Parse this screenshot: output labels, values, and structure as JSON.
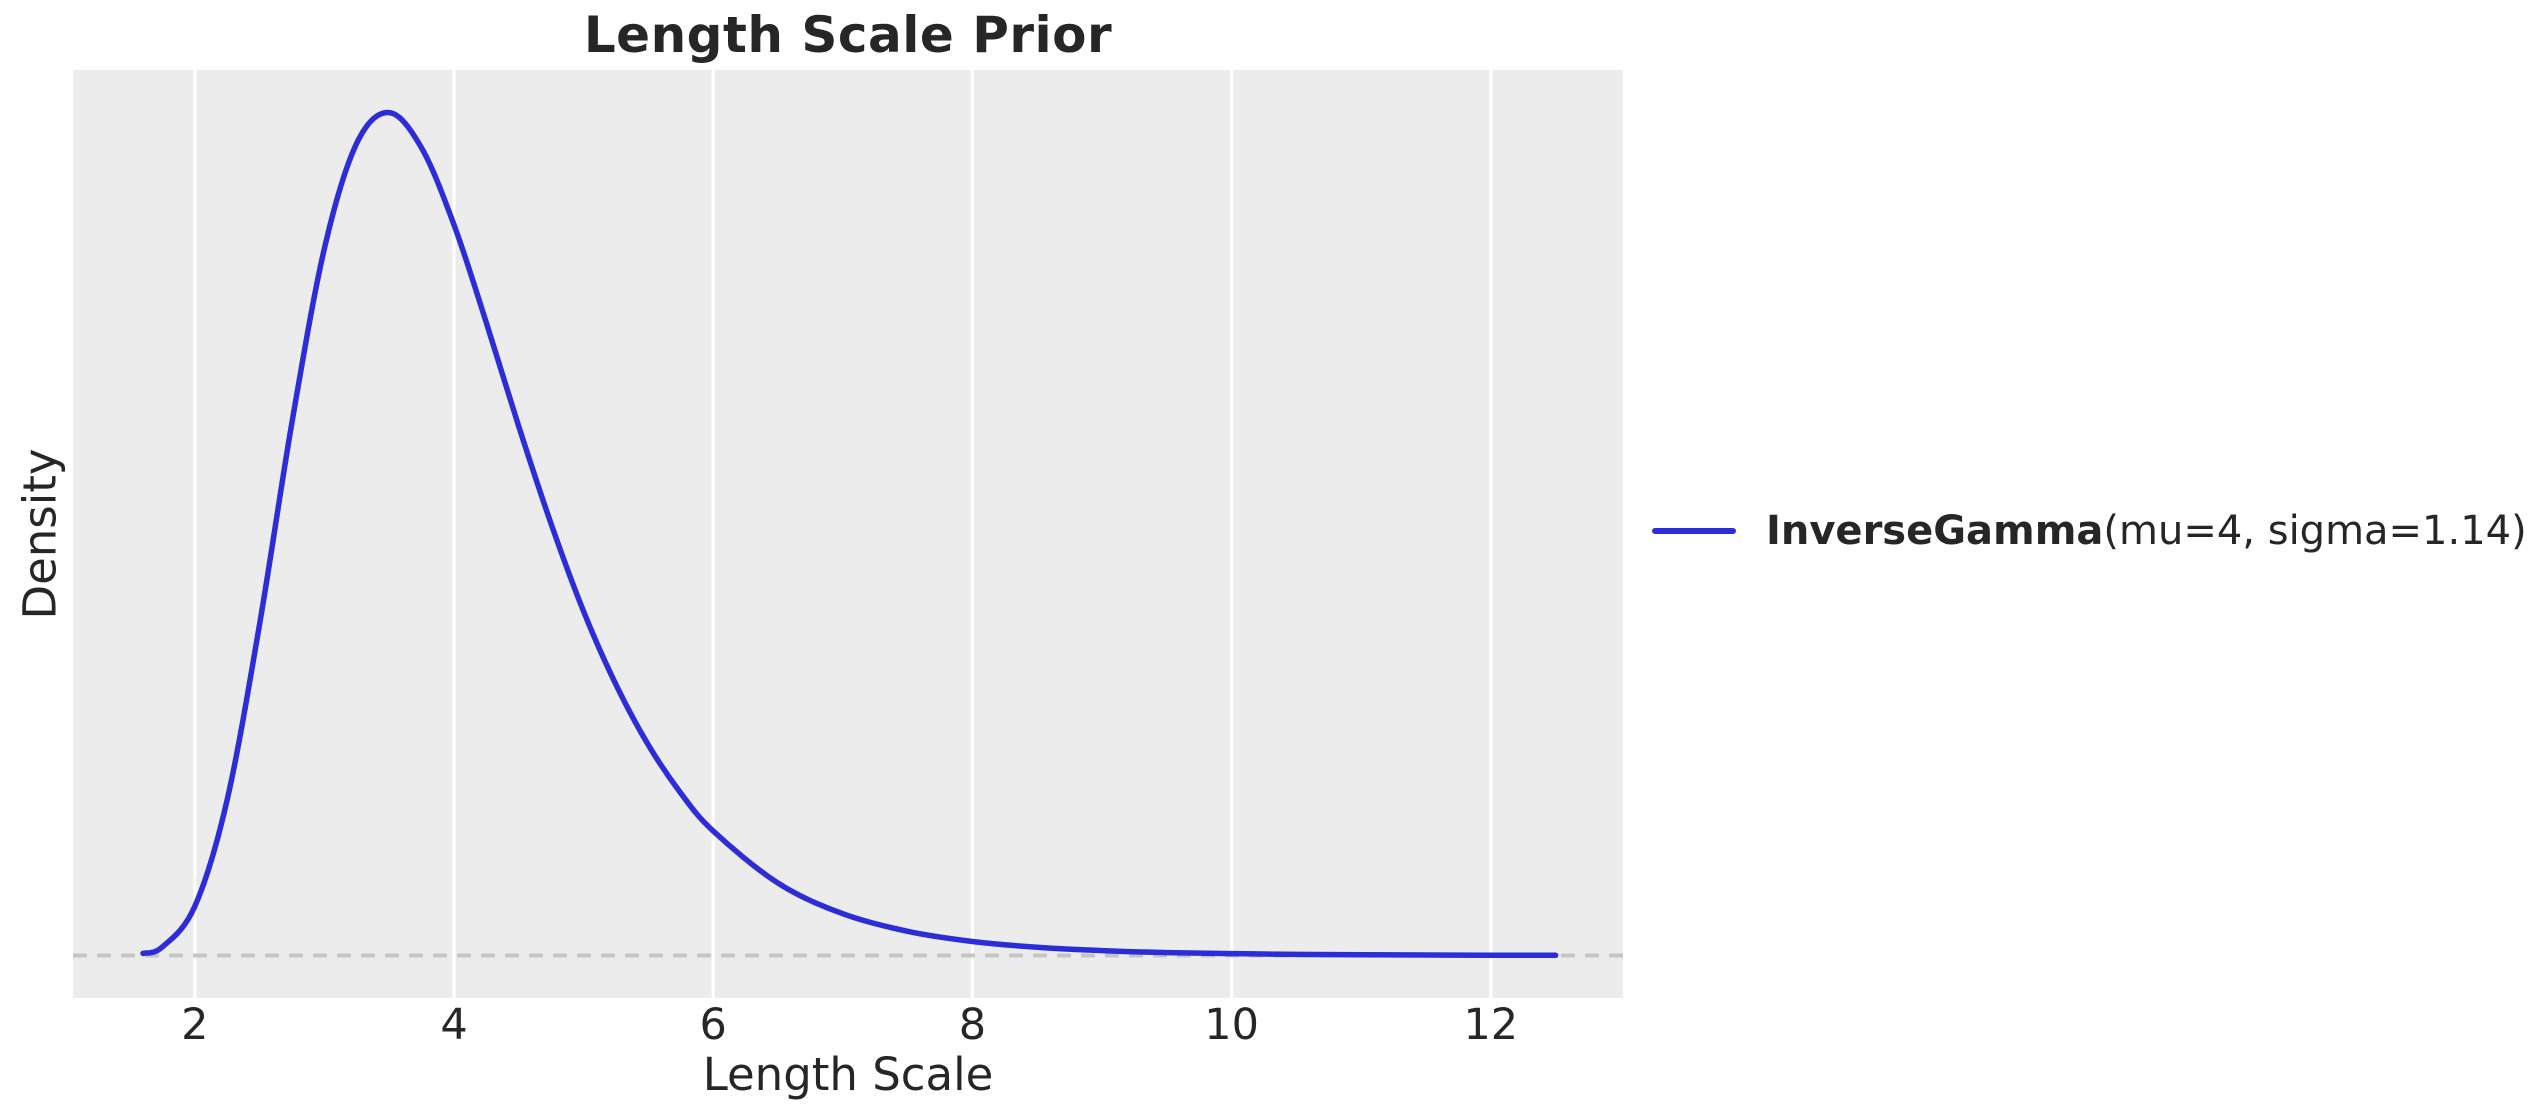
{
  "colors": {
    "plot_bg": "#ececec",
    "grid": "#ffffff",
    "line": "#2c2cd8",
    "zero_line": "#c4c4c4",
    "text": "#262626"
  },
  "chart_data": {
    "type": "line",
    "title": "Length Scale Prior",
    "xlabel": "Length Scale",
    "ylabel": "Density",
    "x_ticks": [
      2,
      4,
      6,
      8,
      10,
      12
    ],
    "xlim": [
      1.06,
      13.02
    ],
    "ylim": [
      -0.021,
      0.437
    ],
    "grid": "vertical-only",
    "legend_position": "right-outside",
    "zero_line": {
      "y": 0,
      "style": "dashed"
    },
    "series": [
      {
        "name": "InverseGamma(mu=4, sigma=1.14)",
        "color": "#2c2cd8",
        "x": [
          1.6,
          1.75,
          2.0,
          2.25,
          2.5,
          2.75,
          3.0,
          3.25,
          3.5,
          3.75,
          4.0,
          4.25,
          4.5,
          4.75,
          5.0,
          5.25,
          5.5,
          5.75,
          6.0,
          6.5,
          7.0,
          7.5,
          8.0,
          8.5,
          9.0,
          9.5,
          10.0,
          10.5,
          11.0,
          11.5,
          12.0,
          12.5
        ],
        "y": [
          0.001,
          0.0042,
          0.0242,
          0.0769,
          0.1635,
          0.2632,
          0.3489,
          0.4009,
          0.416,
          0.3985,
          0.3606,
          0.3122,
          0.261,
          0.2129,
          0.1698,
          0.1336,
          0.1038,
          0.0801,
          0.0614,
          0.0357,
          0.0206,
          0.0119,
          0.0069,
          0.004,
          0.0024,
          0.0014,
          0.0009,
          0.0005,
          0.0003,
          0.0002,
          0.00013,
          8e-05
        ]
      }
    ],
    "peak": {
      "x": 3.48,
      "y": 0.416
    }
  },
  "legend": {
    "name_bold": "InverseGamma",
    "params": "(mu=4, sigma=1.14)"
  }
}
